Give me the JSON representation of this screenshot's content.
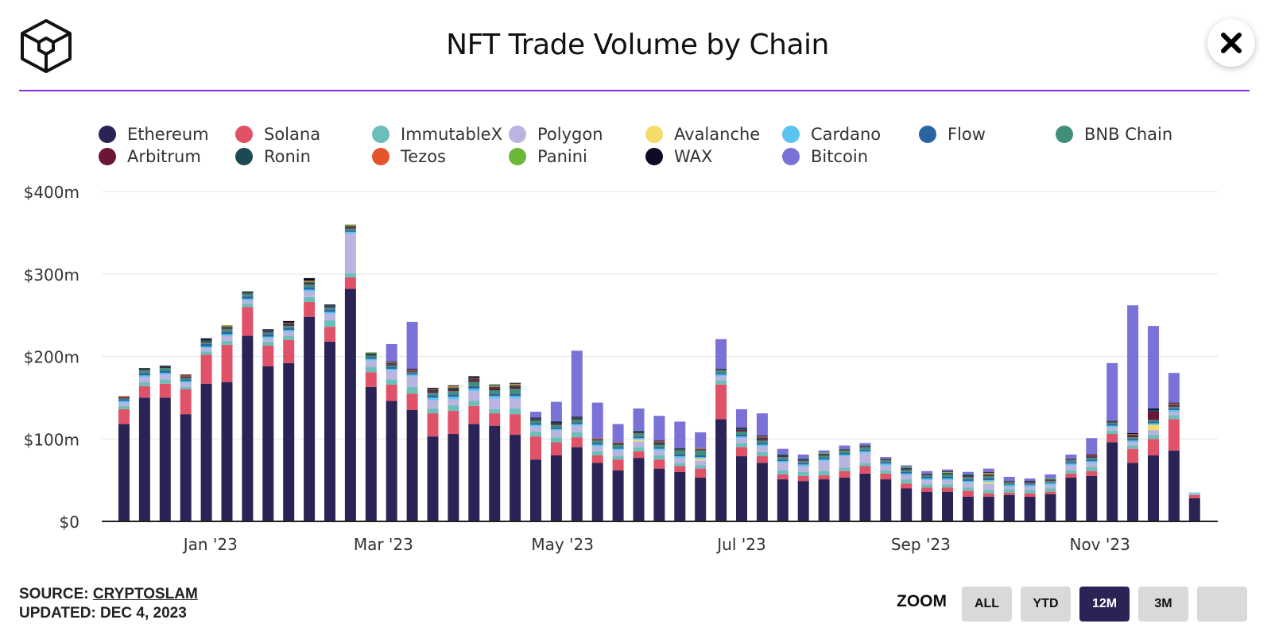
{
  "header": {
    "title": "NFT Trade Volume by Chain"
  },
  "legend": [
    {
      "name": "Ethereum",
      "color": "#2a2456"
    },
    {
      "name": "Solana",
      "color": "#e05267"
    },
    {
      "name": "ImmutableX",
      "color": "#6cbfb8"
    },
    {
      "name": "Polygon",
      "color": "#b9b4e0"
    },
    {
      "name": "Avalanche",
      "color": "#f5dc6a"
    },
    {
      "name": "Cardano",
      "color": "#5bc4ee"
    },
    {
      "name": "Flow",
      "color": "#2b64a3"
    },
    {
      "name": "BNB Chain",
      "color": "#3f8f7a"
    },
    {
      "name": "Arbitrum",
      "color": "#6b1538"
    },
    {
      "name": "Ronin",
      "color": "#1d4a52"
    },
    {
      "name": "Tezos",
      "color": "#e5532a"
    },
    {
      "name": "Panini",
      "color": "#6ab83a"
    },
    {
      "name": "WAX",
      "color": "#0d0b26"
    },
    {
      "name": "Bitcoin",
      "color": "#7a72d6"
    }
  ],
  "chart_data": {
    "type": "bar",
    "stacked": true,
    "title": "NFT Trade Volume by Chain",
    "xlabel": "",
    "ylabel": "",
    "ylim": [
      0,
      400
    ],
    "y_ticks": [
      "$0",
      "$100m",
      "$200m",
      "$300m",
      "$400m"
    ],
    "y_tick_values": [
      0,
      100,
      200,
      300,
      400
    ],
    "x_ticks": [
      {
        "label": "Jan '23",
        "week": 4.2
      },
      {
        "label": "Mar '23",
        "week": 12.6
      },
      {
        "label": "May '23",
        "week": 21.3
      },
      {
        "label": "Jul '23",
        "week": 30.0
      },
      {
        "label": "Sep '23",
        "week": 38.7
      },
      {
        "label": "Nov '23",
        "week": 47.4
      }
    ],
    "series": [
      {
        "name": "Ethereum",
        "values": [
          118,
          150,
          150,
          130,
          167,
          169,
          225,
          188,
          192,
          248,
          218,
          282,
          163,
          146,
          135,
          103,
          106,
          118,
          116,
          105,
          75,
          80,
          90,
          71,
          62,
          77,
          64,
          60,
          53,
          124,
          79,
          71,
          51,
          49,
          51,
          53,
          58,
          51,
          40,
          36,
          36,
          30,
          30,
          32,
          30,
          33,
          53,
          55,
          96,
          71,
          80,
          86,
          28
        ]
      },
      {
        "name": "Solana",
        "values": [
          18,
          14,
          17,
          30,
          35,
          45,
          35,
          25,
          28,
          18,
          18,
          14,
          18,
          20,
          20,
          28,
          28,
          22,
          15,
          25,
          28,
          16,
          12,
          9,
          13,
          8,
          11,
          7,
          11,
          42,
          11,
          8,
          6,
          6,
          5,
          8,
          9,
          7,
          6,
          5,
          5,
          7,
          4,
          3,
          4,
          3,
          5,
          6,
          10,
          17,
          20,
          38,
          4
        ]
      },
      {
        "name": "ImmutableX",
        "values": [
          4,
          5,
          5,
          3,
          4,
          5,
          4,
          5,
          5,
          6,
          8,
          5,
          6,
          6,
          8,
          6,
          7,
          6,
          5,
          7,
          6,
          6,
          6,
          5,
          4,
          5,
          5,
          4,
          4,
          5,
          5,
          5,
          5,
          5,
          5,
          4,
          4,
          4,
          5,
          4,
          4,
          4,
          4,
          4,
          4,
          4,
          4,
          5,
          4,
          4,
          5,
          5,
          1
        ]
      },
      {
        "name": "Polygon",
        "values": [
          4,
          6,
          6,
          5,
          4,
          6,
          4,
          4,
          5,
          7,
          8,
          48,
          8,
          11,
          13,
          10,
          7,
          12,
          13,
          12,
          6,
          8,
          8,
          6,
          7,
          7,
          6,
          6,
          6,
          5,
          6,
          7,
          9,
          7,
          12,
          14,
          12,
          6,
          5,
          5,
          5,
          6,
          8,
          3,
          4,
          4,
          6,
          5,
          4,
          4,
          6,
          4,
          1
        ]
      },
      {
        "name": "Avalanche",
        "values": [
          0,
          0,
          0,
          0,
          0,
          0,
          0,
          0,
          0,
          0,
          0,
          0,
          0,
          0,
          0,
          0,
          0,
          0,
          0,
          0,
          0,
          0,
          0,
          0,
          0,
          2,
          0,
          0,
          2,
          0,
          0,
          0,
          0,
          0,
          0,
          0,
          0,
          0,
          0,
          0,
          0,
          0,
          2,
          0,
          0,
          0,
          0,
          0,
          0,
          0,
          6,
          0,
          0
        ]
      },
      {
        "name": "Cardano",
        "values": [
          2,
          2,
          2,
          2,
          2,
          2,
          2,
          2,
          2,
          2,
          2,
          2,
          2,
          2,
          2,
          3,
          3,
          3,
          3,
          3,
          2,
          2,
          2,
          2,
          2,
          2,
          2,
          2,
          2,
          2,
          2,
          2,
          2,
          2,
          2,
          2,
          2,
          2,
          2,
          2,
          2,
          2,
          2,
          2,
          2,
          2,
          2,
          2,
          2,
          2,
          2,
          2,
          1
        ]
      },
      {
        "name": "Flow",
        "values": [
          2,
          3,
          3,
          2,
          3,
          3,
          3,
          3,
          3,
          3,
          3,
          2,
          2,
          2,
          2,
          3,
          3,
          3,
          3,
          3,
          2,
          2,
          2,
          2,
          2,
          2,
          2,
          2,
          2,
          2,
          2,
          2,
          2,
          2,
          2,
          2,
          2,
          2,
          2,
          2,
          2,
          2,
          2,
          1,
          1,
          1,
          2,
          2,
          2,
          2,
          2,
          2,
          0
        ]
      },
      {
        "name": "BNB Chain",
        "values": [
          1,
          3,
          3,
          2,
          2,
          3,
          3,
          2,
          2,
          3,
          2,
          2,
          2,
          2,
          1,
          3,
          4,
          5,
          4,
          6,
          3,
          3,
          3,
          3,
          3,
          4,
          3,
          5,
          6,
          3,
          4,
          3,
          3,
          2,
          3,
          3,
          3,
          2,
          2,
          2,
          3,
          3,
          3,
          2,
          1,
          2,
          2,
          2,
          2,
          2,
          2,
          2,
          0
        ]
      },
      {
        "name": "Arbitrum",
        "values": [
          1,
          1,
          1,
          1,
          1,
          1,
          1,
          1,
          1,
          1,
          1,
          1,
          1,
          1,
          1,
          2,
          2,
          2,
          2,
          2,
          1,
          1,
          1,
          1,
          1,
          1,
          1,
          1,
          1,
          1,
          2,
          2,
          1,
          1,
          1,
          1,
          1,
          1,
          1,
          1,
          1,
          1,
          1,
          1,
          1,
          1,
          1,
          1,
          1,
          2,
          10,
          2,
          0
        ]
      },
      {
        "name": "Ronin",
        "values": [
          1,
          2,
          2,
          1,
          2,
          2,
          2,
          2,
          2,
          2,
          2,
          2,
          2,
          2,
          1,
          2,
          2,
          2,
          2,
          2,
          2,
          2,
          2,
          1,
          1,
          2,
          2,
          2,
          1,
          1,
          2,
          2,
          2,
          2,
          1,
          1,
          1,
          1,
          2,
          1,
          1,
          2,
          1,
          1,
          1,
          1,
          1,
          1,
          1,
          1,
          2,
          1,
          0
        ]
      },
      {
        "name": "Tezos",
        "values": [
          1,
          0,
          0,
          1,
          0,
          1,
          0,
          0,
          1,
          1,
          0,
          1,
          0,
          1,
          1,
          1,
          1,
          1,
          1,
          1,
          0,
          0,
          0,
          1,
          1,
          0,
          1,
          0,
          1,
          0,
          0,
          1,
          0,
          0,
          0,
          0,
          0,
          0,
          0,
          0,
          0,
          0,
          1,
          0,
          0,
          0,
          0,
          1,
          0,
          1,
          0,
          1,
          0
        ]
      },
      {
        "name": "Panini",
        "values": [
          0,
          0,
          0,
          0,
          0,
          1,
          0,
          0,
          0,
          1,
          0,
          1,
          1,
          0,
          0,
          0,
          1,
          0,
          1,
          1,
          0,
          0,
          0,
          0,
          0,
          0,
          0,
          0,
          0,
          0,
          0,
          0,
          0,
          0,
          1,
          0,
          0,
          0,
          1,
          0,
          1,
          0,
          1,
          0,
          0,
          1,
          0,
          0,
          0,
          0,
          0,
          0,
          0
        ]
      },
      {
        "name": "WAX",
        "values": [
          0,
          0,
          0,
          1,
          2,
          0,
          0,
          1,
          2,
          3,
          1,
          0,
          0,
          1,
          1,
          1,
          1,
          2,
          1,
          1,
          1,
          1,
          1,
          0,
          0,
          0,
          1,
          0,
          0,
          0,
          1,
          1,
          0,
          0,
          0,
          0,
          0,
          0,
          0,
          0,
          1,
          0,
          1,
          0,
          1,
          0,
          0,
          1,
          0,
          1,
          2,
          1,
          0
        ]
      },
      {
        "name": "Bitcoin",
        "values": [
          0,
          0,
          0,
          0,
          0,
          0,
          0,
          0,
          0,
          0,
          0,
          0,
          0,
          21,
          57,
          0,
          0,
          0,
          0,
          0,
          7,
          24,
          80,
          43,
          22,
          27,
          30,
          32,
          19,
          36,
          22,
          27,
          7,
          5,
          3,
          4,
          3,
          2,
          2,
          3,
          2,
          3,
          4,
          5,
          3,
          5,
          5,
          20,
          70,
          155,
          100,
          36,
          0
        ]
      }
    ]
  },
  "footer": {
    "source_label": "SOURCE:",
    "source_link": "CRYPTOSLAM",
    "updated": "UPDATED: DEC 4, 2023"
  },
  "zoom": {
    "label": "ZOOM",
    "options": [
      "ALL",
      "YTD",
      "12M",
      "3M",
      ""
    ],
    "selected": "12M"
  }
}
